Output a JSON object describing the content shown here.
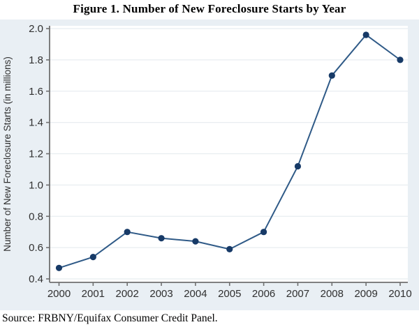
{
  "page": {
    "title": "Figure 1. Number of New Foreclosure Starts by Year",
    "source_note": "Source: FRBNY/Equifax Consumer Credit Panel."
  },
  "chart_data": {
    "type": "line",
    "title": "Figure 1. Number of New Foreclosure Starts by Year",
    "x": [
      "2000",
      "2001",
      "2002",
      "2003",
      "2004",
      "2005",
      "2006",
      "2007",
      "2008",
      "2009",
      "2010"
    ],
    "series": [
      {
        "name": "Number of New Foreclosure Starts",
        "values": [
          0.47,
          0.54,
          0.7,
          0.66,
          0.64,
          0.59,
          0.7,
          1.12,
          1.7,
          1.96,
          1.8
        ]
      }
    ],
    "xlabel": "",
    "ylabel": "Number of New Foreclosure Starts (in millions)",
    "ylim": [
      0.4,
      2.0
    ],
    "yticks": [
      0.4,
      0.6,
      0.8,
      1.0,
      1.2,
      1.4,
      1.6,
      1.8,
      2.0
    ],
    "grid": "horizontal",
    "legend_position": "none",
    "marker": "filled-circle",
    "source_note": "Source: FRBNY/Equifax Consumer Credit Panel.",
    "colors": {
      "figure_background": "#e9eff4",
      "plot_background": "#ffffff",
      "gridline": "#e8edf0",
      "axis": "#6f6f6f",
      "line": "#2f5a87",
      "marker": "#173a67",
      "tick_label": "#303030"
    }
  }
}
